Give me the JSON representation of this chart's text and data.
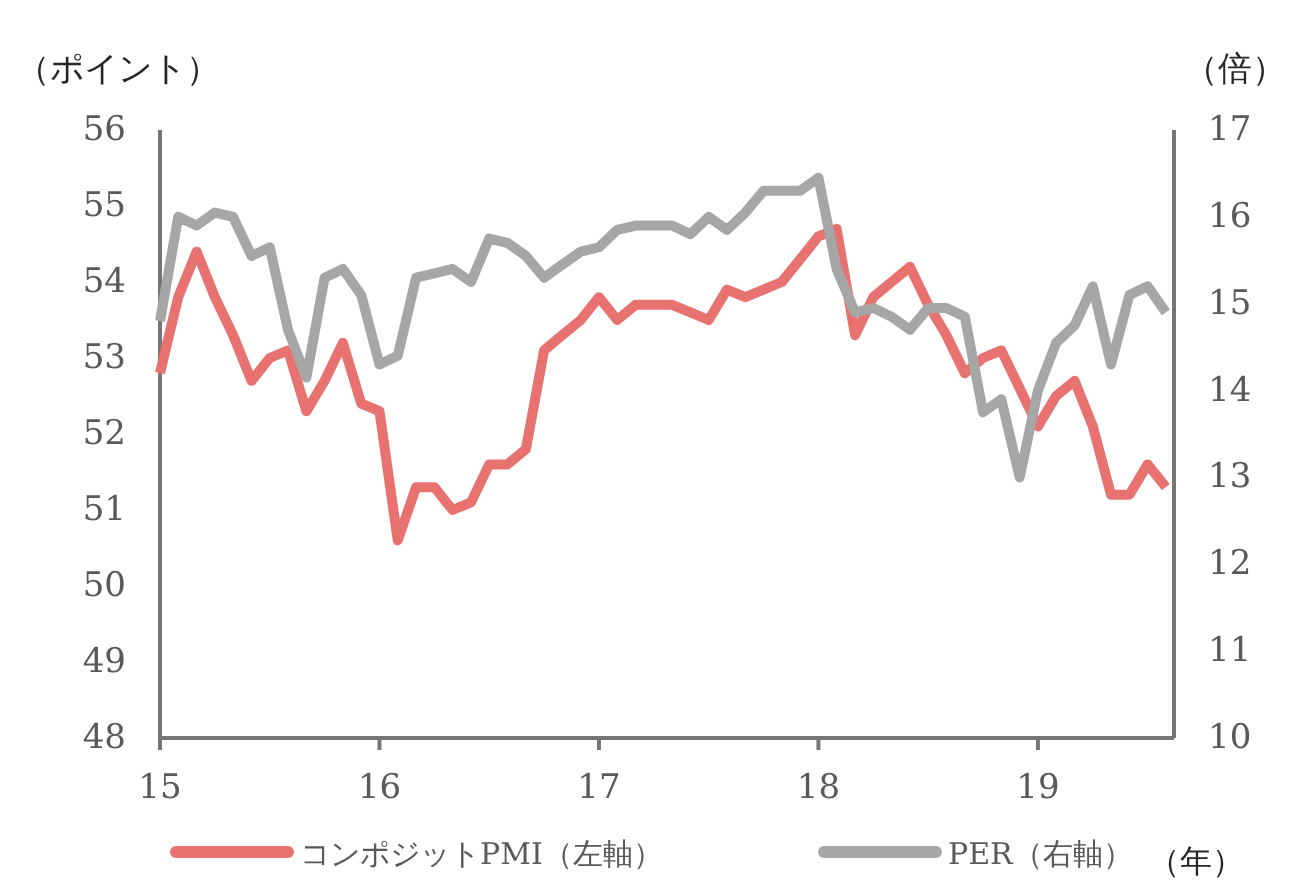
{
  "chart_data": {
    "type": "line",
    "xlabel": "（年）",
    "ylabel": "（ポイント）",
    "y2label": "（倍）",
    "xlim": [
      15,
      19.62
    ],
    "xticks": [
      15,
      16,
      17,
      18,
      19
    ],
    "ylim": [
      48,
      56
    ],
    "yticks": [
      48,
      49,
      50,
      51,
      52,
      53,
      54,
      55,
      56
    ],
    "y2lim": [
      10,
      17
    ],
    "y2ticks": [
      10,
      11,
      12,
      13,
      14,
      15,
      16,
      17
    ],
    "x": [
      15,
      15.083,
      15.167,
      15.25,
      15.333,
      15.417,
      15.5,
      15.583,
      15.667,
      15.75,
      15.833,
      15.917,
      16,
      16.083,
      16.167,
      16.25,
      16.333,
      16.417,
      16.5,
      16.583,
      16.667,
      16.75,
      16.833,
      16.917,
      17,
      17.083,
      17.167,
      17.25,
      17.333,
      17.417,
      17.5,
      17.583,
      17.667,
      17.75,
      17.833,
      17.917,
      18,
      18.083,
      18.167,
      18.25,
      18.333,
      18.417,
      18.5,
      18.583,
      18.667,
      18.75,
      18.833,
      18.917,
      19,
      19.083,
      19.167,
      19.25,
      19.333,
      19.417,
      19.5,
      19.583
    ],
    "series": [
      {
        "name": "コンポジットPMI（左軸）",
        "color": "#e8726f",
        "values": [
          52.8,
          53.8,
          54.4,
          53.8,
          53.3,
          52.7,
          53.0,
          53.1,
          52.3,
          52.7,
          53.2,
          52.4,
          52.3,
          50.6,
          51.3,
          51.3,
          51.0,
          51.1,
          51.6,
          51.6,
          51.8,
          53.1,
          53.3,
          53.5,
          53.8,
          53.5,
          53.7,
          53.7,
          53.7,
          53.6,
          53.5,
          53.9,
          53.8,
          53.9,
          54.0,
          54.3,
          54.6,
          54.7,
          53.3,
          53.8,
          54.0,
          54.2,
          53.7,
          53.3,
          52.8,
          53.0,
          53.1,
          52.6,
          52.1,
          52.5,
          52.7,
          52.1,
          51.2,
          51.2,
          51.6,
          51.3
        ]
      },
      {
        "name": "PER（右軸）",
        "color": "#a6a6a6",
        "axis": "y2",
        "values": [
          14.8,
          16.0,
          15.9,
          16.05,
          16.0,
          15.55,
          15.65,
          14.7,
          14.15,
          15.3,
          15.4,
          15.1,
          14.3,
          14.4,
          15.3,
          15.35,
          15.4,
          15.25,
          15.75,
          15.7,
          15.55,
          15.3,
          15.45,
          15.6,
          15.65,
          15.85,
          15.9,
          15.9,
          15.9,
          15.8,
          16.0,
          15.85,
          16.05,
          16.3,
          16.3,
          16.3,
          16.45,
          15.4,
          14.9,
          14.95,
          14.85,
          14.7,
          14.95,
          14.95,
          14.85,
          13.75,
          13.9,
          13.0,
          14.0,
          14.55,
          14.75,
          15.2,
          14.3,
          15.1,
          15.2,
          14.9
        ]
      }
    ],
    "legend": "bottom",
    "grid": false,
    "marker": "none",
    "line_style": "solid"
  }
}
